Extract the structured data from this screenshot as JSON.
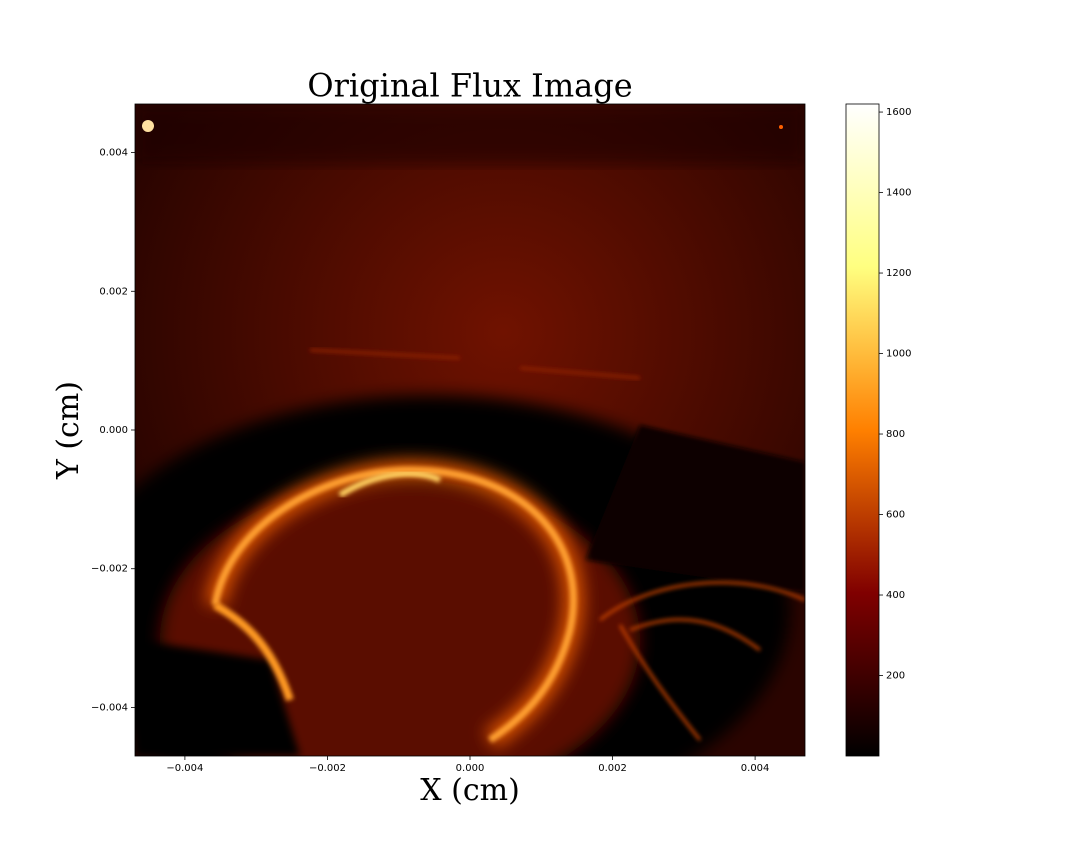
{
  "chart_data": {
    "type": "image",
    "title": "Original Flux Image",
    "x_label": "X (cm)",
    "y_label": "Y (cm)",
    "xlim": [
      -0.0047,
      0.0047
    ],
    "ylim": [
      -0.0047,
      0.0047
    ],
    "xticks": [
      {
        "value": -0.004,
        "label": "−0.004"
      },
      {
        "value": -0.002,
        "label": "−0.002"
      },
      {
        "value": 0,
        "label": "0.000"
      },
      {
        "value": 0.002,
        "label": "0.002"
      },
      {
        "value": 0.004,
        "label": "0.004"
      }
    ],
    "yticks": [
      {
        "value": -0.004,
        "label": "−0.004"
      },
      {
        "value": -0.002,
        "label": "−0.002"
      },
      {
        "value": 0,
        "label": "0.000"
      },
      {
        "value": 0.002,
        "label": "0.002"
      },
      {
        "value": 0.004,
        "label": "0.004"
      }
    ],
    "colormap": "afmhot",
    "clim": [
      0,
      1620
    ],
    "colorbar_ticks": [
      200,
      400,
      600,
      800,
      1000,
      1200,
      1400,
      1600
    ]
  }
}
